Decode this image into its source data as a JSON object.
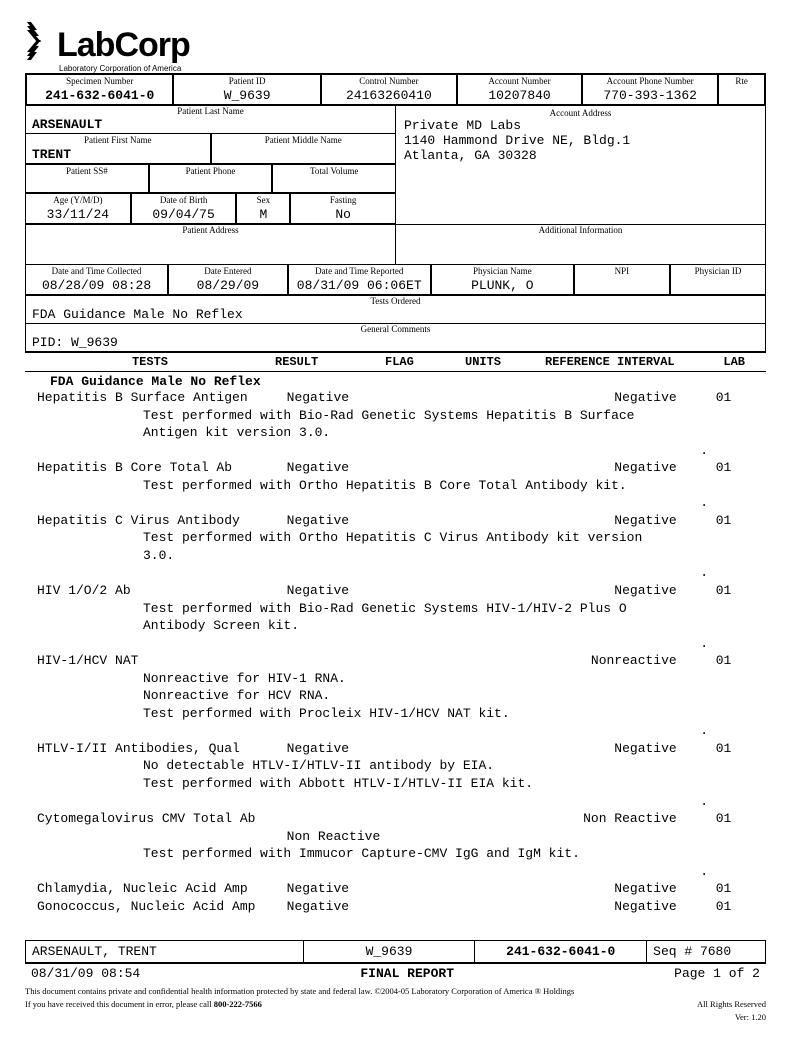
{
  "logo": {
    "text": "LabCorp",
    "sub": "Laboratory Corporation of America"
  },
  "header_row1": {
    "specimen_number": {
      "label": "Specimen Number",
      "value": "241-632-6041-0"
    },
    "patient_id": {
      "label": "Patient ID",
      "value": "W_9639"
    },
    "control_number": {
      "label": "Control Number",
      "value": "24163260410"
    },
    "account_number": {
      "label": "Account Number",
      "value": "10207840"
    },
    "account_phone": {
      "label": "Account Phone Number",
      "value": "770-393-1362"
    },
    "rte": {
      "label": "Rte",
      "value": ""
    }
  },
  "patient": {
    "last_name": {
      "label": "Patient Last Name",
      "value": "ARSENAULT"
    },
    "first_name": {
      "label": "Patient First Name",
      "value": "TRENT"
    },
    "middle_name": {
      "label": "Patient Middle Name",
      "value": ""
    },
    "ss": {
      "label": "Patient SS#",
      "value": ""
    },
    "phone": {
      "label": "Patient Phone",
      "value": ""
    },
    "total_volume": {
      "label": "Total Volume",
      "value": ""
    },
    "age": {
      "label": "Age (Y/M/D)",
      "value": "33/11/24"
    },
    "dob": {
      "label": "Date of Birth",
      "value": "09/04/75"
    },
    "sex": {
      "label": "Sex",
      "value": "M"
    },
    "fasting": {
      "label": "Fasting",
      "value": "No"
    },
    "address": {
      "label": "Patient Address",
      "value": ""
    }
  },
  "account": {
    "address_label": "Account Address",
    "name": "Private MD Labs",
    "addr1": "1140 Hammond Drive NE, Bldg.1",
    "addr2": "Atlanta, GA 30328",
    "additional_label": "Additional Information"
  },
  "dates": {
    "collected": {
      "label": "Date and Time Collected",
      "value": "08/28/09 08:28"
    },
    "entered": {
      "label": "Date Entered",
      "value": "08/29/09"
    },
    "reported": {
      "label": "Date and Time Reported",
      "value": "08/31/09 06:06ET"
    },
    "physician": {
      "label": "Physician Name",
      "value": "PLUNK, O"
    },
    "npi": {
      "label": "NPI",
      "value": ""
    },
    "physician_id": {
      "label": "Physician ID",
      "value": ""
    }
  },
  "tests_ordered": {
    "label": "Tests Ordered",
    "value": "FDA Guidance Male No Reflex"
  },
  "general_comments": {
    "label": "General Comments",
    "value": "PID: W_9639"
  },
  "columns": {
    "tests": "TESTS",
    "result": "RESULT",
    "flag": "FLAG",
    "units": "UNITS",
    "reference": "REFERENCE INTERVAL",
    "lab": "LAB"
  },
  "results_heading": "FDA Guidance Male No Reflex",
  "results": [
    {
      "name": "Hepatitis B Surface Antigen",
      "result": "Negative",
      "reference": "Negative",
      "lab": "01",
      "notes": [
        "Test performed with Bio-Rad Genetic Systems Hepatitis B Surface",
        "Antigen kit version 3.0."
      ]
    },
    {
      "name": "Hepatitis B Core Total Ab",
      "result": "Negative",
      "reference": "Negative",
      "lab": "01",
      "notes": [
        "Test performed with Ortho Hepatitis B Core Total Antibody kit."
      ]
    },
    {
      "name": "Hepatitis C Virus Antibody",
      "result": "Negative",
      "reference": "Negative",
      "lab": "01",
      "notes": [
        "Test performed with Ortho Hepatitis C Virus Antibody kit version",
        "3.0."
      ]
    },
    {
      "name": "HIV 1/O/2 Ab",
      "result": "Negative",
      "reference": "Negative",
      "lab": "01",
      "notes": [
        "Test performed with Bio-Rad Genetic Systems HIV-1/HIV-2 Plus O",
        "Antibody Screen kit."
      ]
    },
    {
      "name": "HIV-1/HCV NAT",
      "result": "",
      "reference": "Nonreactive",
      "lab": "01",
      "notes": [
        "Nonreactive for HIV-1 RNA.",
        "    Nonreactive for HCV RNA.",
        "Test performed with Procleix HIV-1/HCV NAT kit."
      ]
    },
    {
      "name": "HTLV-I/II Antibodies, Qual",
      "result": "Negative",
      "reference": "Negative",
      "lab": "01",
      "notes": [
        "No detectable HTLV-I/HTLV-II antibody by EIA.",
        "Test performed with Abbott HTLV-I/HTLV-II EIA kit."
      ]
    },
    {
      "name": "Cytomegalovirus CMV Total Ab",
      "result": "",
      "result2": "Non Reactive",
      "reference": "Non Reactive",
      "lab": "01",
      "notes": [
        "Test performed with Immucor Capture-CMV IgG and IgM kit."
      ]
    },
    {
      "name": "Chlamydia, Nucleic Acid Amp",
      "result": "Negative",
      "reference": "Negative",
      "lab": "01",
      "notes": [],
      "nodot": true
    },
    {
      "name": "Gonococcus, Nucleic Acid Amp",
      "result": "Negative",
      "reference": "Negative",
      "lab": "01",
      "notes": [],
      "nodot": true
    }
  ],
  "footer": {
    "name": "ARSENAULT, TRENT",
    "id": "W_9639",
    "specimen": "241-632-6041-0",
    "seq": "Seq # 7680",
    "timestamp": "08/31/09 08:54",
    "title": "FINAL REPORT",
    "page": "Page 1 of 2",
    "disclaimer1": "This document contains private and confidential health information protected by state and federal law.  ©2004-05 Laboratory Corporation of America ® Holdings",
    "disclaimer2a": "If you have received this document in error, please call ",
    "disclaimer2b": "800-222-7566",
    "rights": "All Rights Reserved",
    "ver": "Ver: 1.20"
  }
}
